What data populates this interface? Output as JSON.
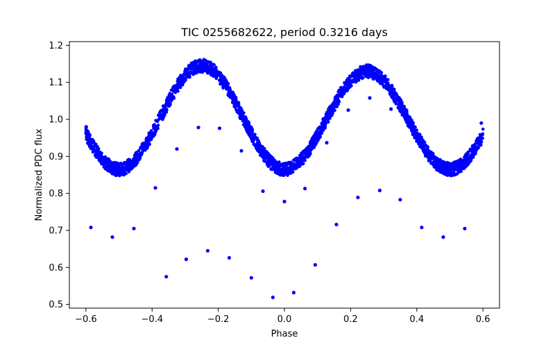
{
  "chart_data": {
    "type": "scatter",
    "title": "TIC 0255682622, period 0.3216 days",
    "xlabel": "Phase",
    "ylabel": "Normalized PDC flux",
    "xlim": [
      -0.65,
      0.65
    ],
    "ylim": [
      0.49,
      1.21
    ],
    "xticks": [
      -0.6,
      -0.4,
      -0.2,
      0.0,
      0.2,
      0.4,
      0.6
    ],
    "xtick_labels": [
      "−0.6",
      "−0.4",
      "−0.2",
      "0.0",
      "0.2",
      "0.4",
      "0.6"
    ],
    "yticks": [
      0.5,
      0.6,
      0.7,
      0.8,
      0.9,
      1.0,
      1.1,
      1.2
    ],
    "ytick_labels": [
      "0.5",
      "0.6",
      "0.7",
      "0.8",
      "0.9",
      "1.0",
      "1.1",
      "1.2"
    ],
    "grid": false,
    "marker_color": "#0000ff",
    "light_curve": {
      "phase_range": [
        -0.6,
        0.6
      ],
      "maxima": [
        {
          "phase": -0.25,
          "flux": 1.145
        },
        {
          "phase": 0.25,
          "flux": 1.13
        }
      ],
      "minima": [
        {
          "phase": -0.5,
          "flux": 0.865
        },
        {
          "phase": 0.0,
          "flux": 0.86
        },
        {
          "phase": 0.5,
          "flux": 0.865
        }
      ],
      "scatter_width": 0.035
    },
    "outliers": [
      {
        "x": -0.599,
        "y": 0.98
      },
      {
        "x": -0.585,
        "y": 0.708
      },
      {
        "x": -0.52,
        "y": 0.682
      },
      {
        "x": -0.455,
        "y": 0.705
      },
      {
        "x": -0.39,
        "y": 0.815
      },
      {
        "x": -0.357,
        "y": 0.575
      },
      {
        "x": -0.325,
        "y": 0.92
      },
      {
        "x": -0.297,
        "y": 0.622
      },
      {
        "x": -0.26,
        "y": 0.978
      },
      {
        "x": -0.232,
        "y": 0.645
      },
      {
        "x": -0.196,
        "y": 0.976
      },
      {
        "x": -0.167,
        "y": 0.626
      },
      {
        "x": -0.13,
        "y": 0.915
      },
      {
        "x": -0.1,
        "y": 0.572
      },
      {
        "x": -0.065,
        "y": 0.806
      },
      {
        "x": -0.035,
        "y": 0.519
      },
      {
        "x": 0.0,
        "y": 0.778
      },
      {
        "x": 0.028,
        "y": 0.532
      },
      {
        "x": 0.062,
        "y": 0.813
      },
      {
        "x": 0.093,
        "y": 0.607
      },
      {
        "x": 0.128,
        "y": 0.937
      },
      {
        "x": 0.157,
        "y": 0.716
      },
      {
        "x": 0.193,
        "y": 1.025
      },
      {
        "x": 0.222,
        "y": 0.789
      },
      {
        "x": 0.258,
        "y": 1.058
      },
      {
        "x": 0.288,
        "y": 0.808
      },
      {
        "x": 0.322,
        "y": 1.028
      },
      {
        "x": 0.35,
        "y": 0.783
      },
      {
        "x": 0.415,
        "y": 0.708
      },
      {
        "x": 0.48,
        "y": 0.682
      },
      {
        "x": 0.545,
        "y": 0.705
      },
      {
        "x": 0.595,
        "y": 0.99
      }
    ]
  }
}
